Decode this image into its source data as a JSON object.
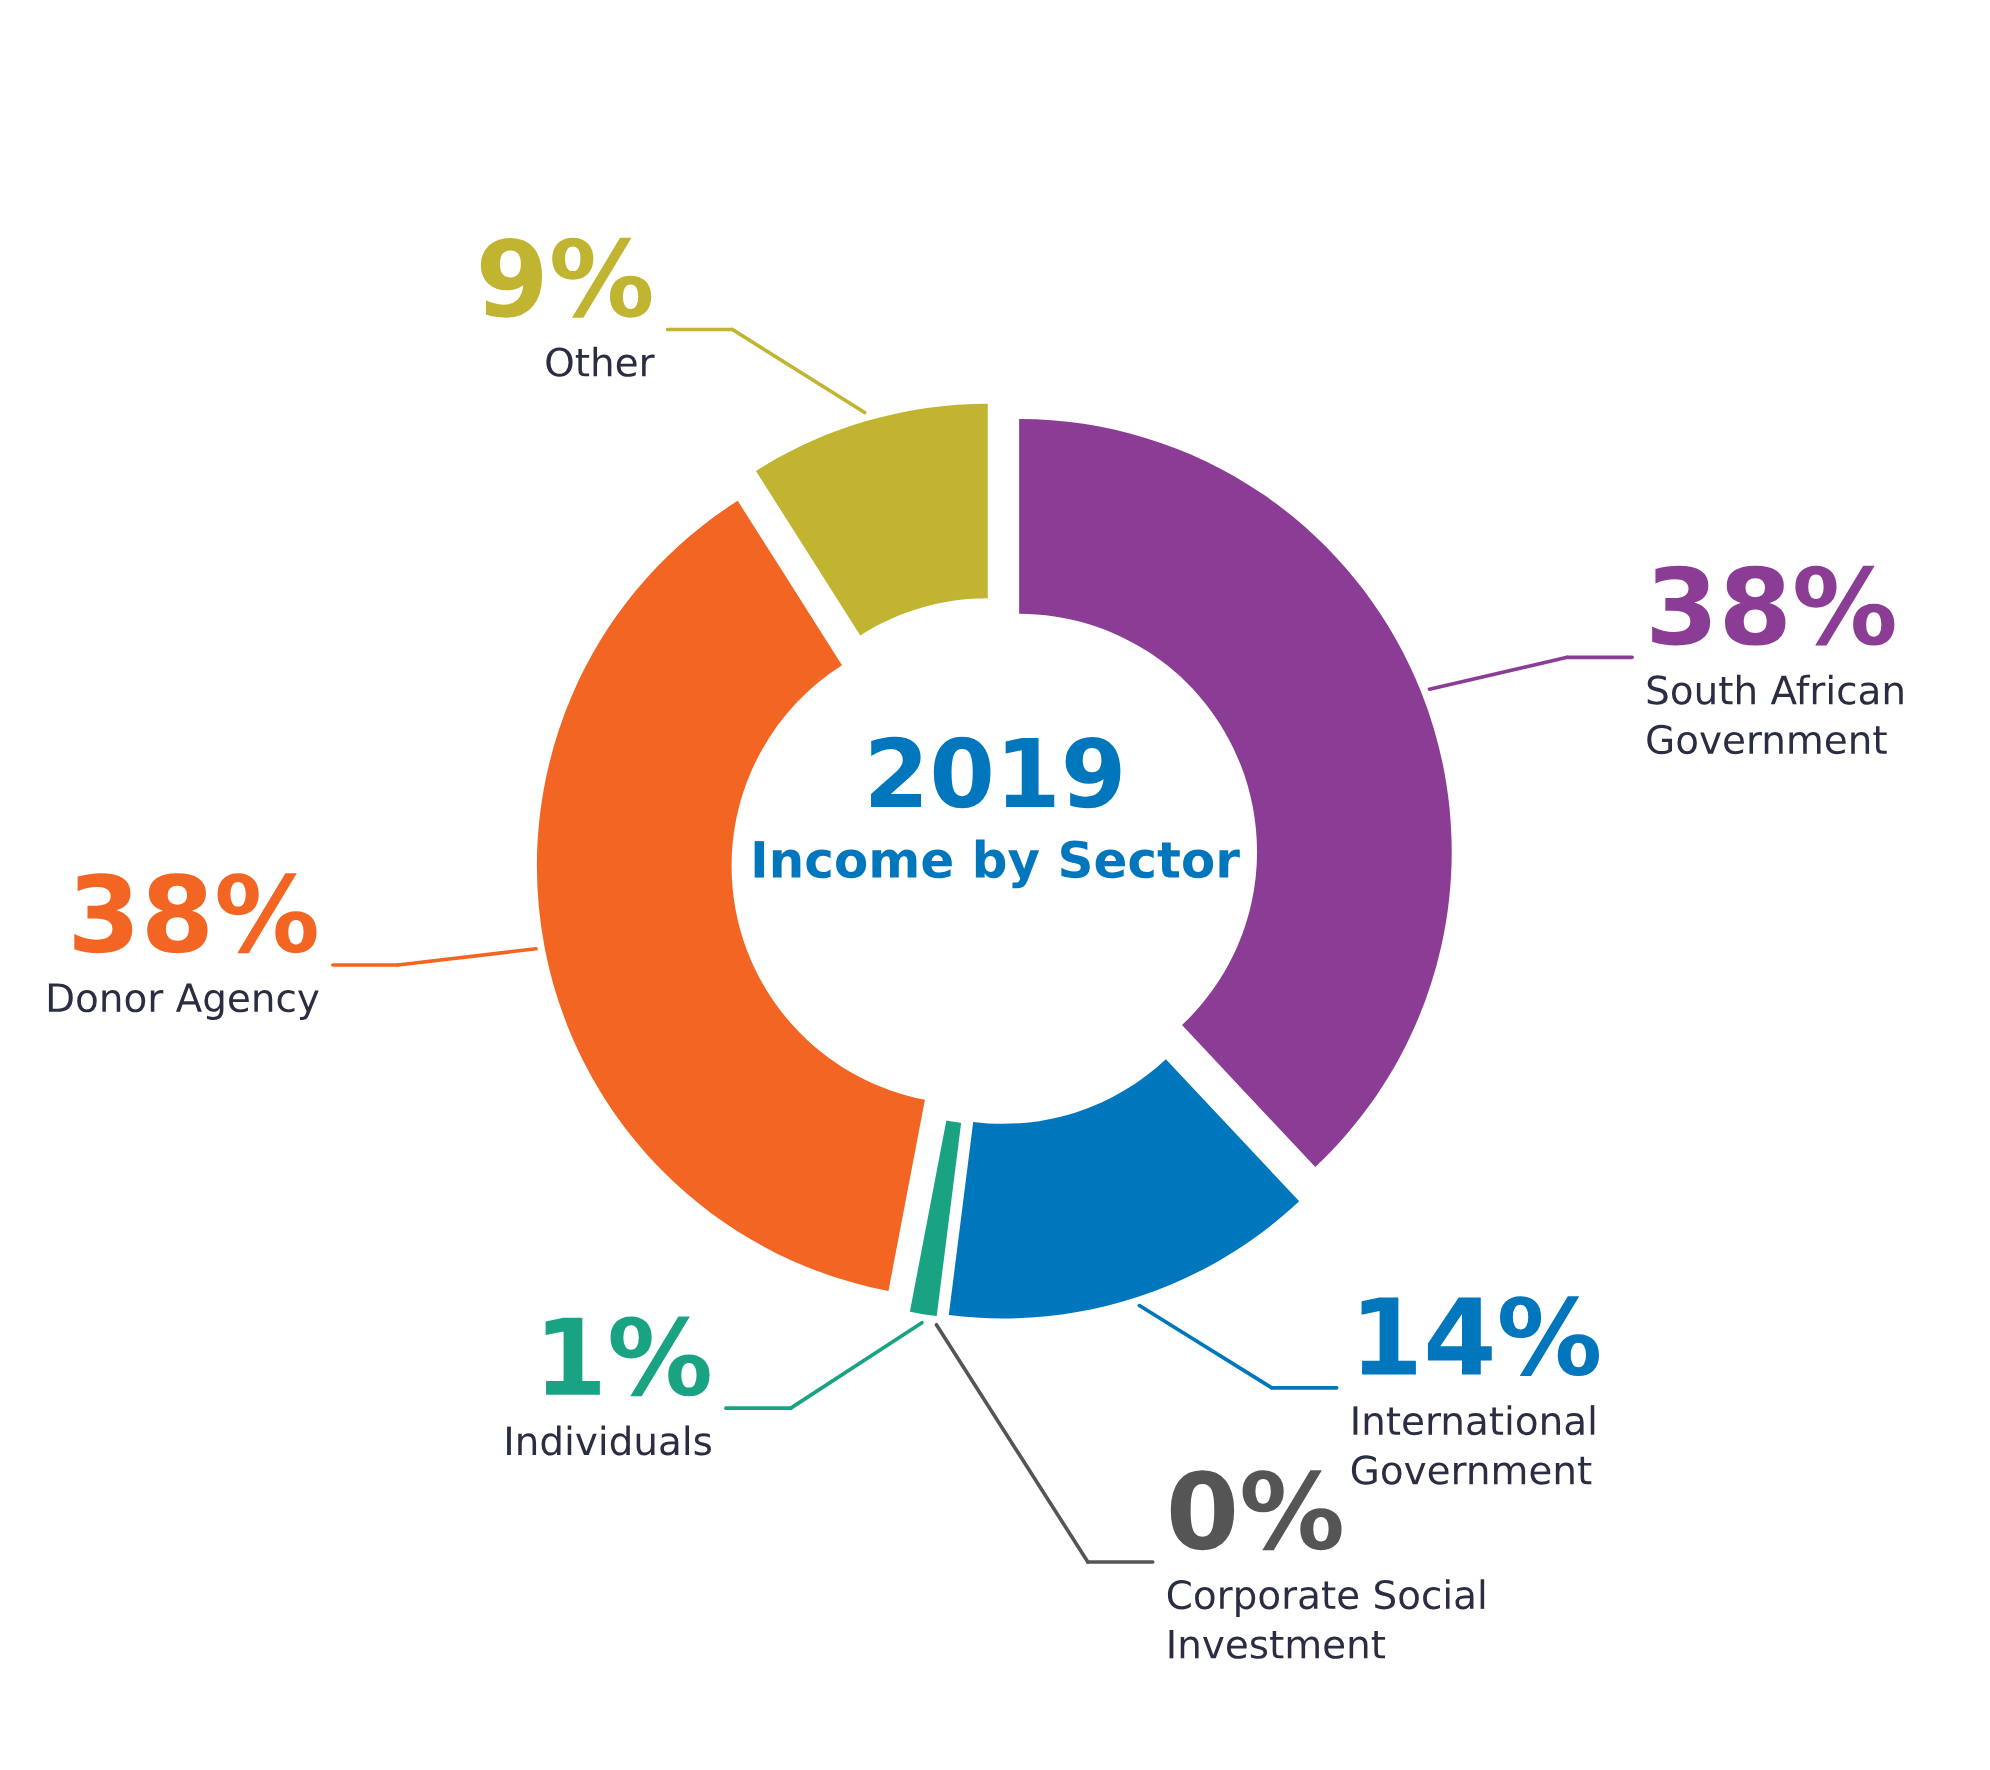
{
  "chart_data": {
    "type": "donut",
    "title": "2019",
    "subtitle": "Income by Sector",
    "categories": [
      "South African\nGovernment",
      "International\nGovernment",
      "Corporate Social\nInvestment",
      "Individuals",
      "Donor Agency",
      "Other"
    ],
    "values": [
      38,
      14,
      0,
      1,
      38,
      9
    ],
    "colors": [
      "#8b3d96",
      "#0077bd",
      "#555555",
      "#1aa382",
      "#f26522",
      "#c0b430"
    ],
    "value_labels": [
      "38%",
      "14%",
      "0%",
      "1%",
      "38%",
      "9%"
    ]
  }
}
